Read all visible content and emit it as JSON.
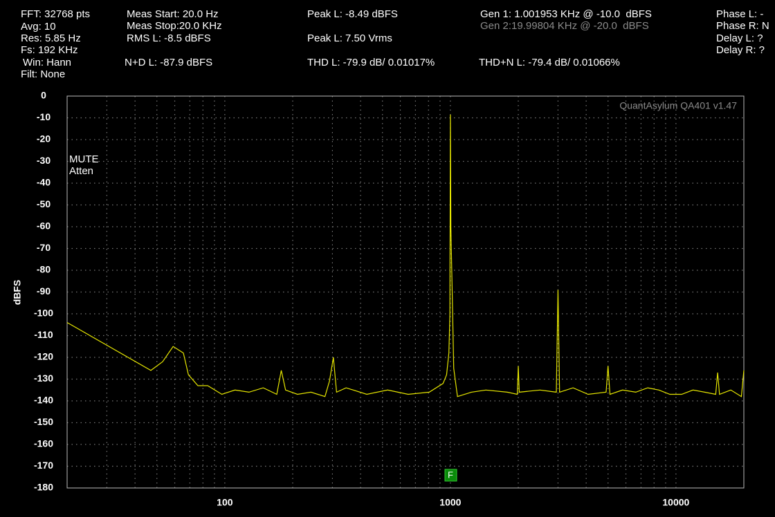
{
  "header": {
    "col1": [
      "FFT: 32768 pts",
      "Avg: 10",
      "Res: 5.85 Hz",
      "Fs: 192 KHz",
      "Win: Hann",
      "Filt: None"
    ],
    "col2": [
      "Meas Start: 20.0 Hz",
      "Meas Stop:20.0 KHz",
      "RMS L: -8.5 dBFS",
      "N+D L: -87.9 dBFS"
    ],
    "col3": [
      "Peak L: -8.49 dBFS",
      "Peak L: 7.50 Vrms",
      "THD L: -79.9 dB/ 0.01017%"
    ],
    "col4": [
      "Gen 1: 1.001953 KHz @ -10.0  dBFS",
      "Gen 2:19.99804 KHz @ -20.0  dBFS",
      "THD+N L: -79.4 dB/ 0.01066%"
    ],
    "col5": [
      "Phase L: -",
      "Phase R: N",
      "Delay L: ?",
      "Delay R: ?"
    ]
  },
  "chart_data": {
    "type": "line",
    "ylabel": "dBFS",
    "watermark": "QuantAsylum QA401 v1.47",
    "annotations": [
      "MUTE",
      "Atten"
    ],
    "marker": "F",
    "color": "#e6e600",
    "log_x": true,
    "grid": true,
    "xlim": [
      20,
      20000
    ],
    "ylim": [
      -180,
      0
    ],
    "xticks": [
      100,
      1000,
      10000
    ],
    "yticks": [
      0,
      -10,
      -20,
      -30,
      -40,
      -50,
      -60,
      -70,
      -80,
      -90,
      -100,
      -110,
      -120,
      -130,
      -140,
      -150,
      -160,
      -170,
      -180
    ],
    "x": [
      20,
      47,
      53,
      59,
      65.5,
      69,
      76,
      84,
      97,
      111,
      128,
      148,
      170,
      178,
      186,
      210,
      241,
      278,
      291,
      303,
      313,
      345,
      426,
      527,
      650,
      806,
      928,
      962,
      985,
      995,
      1000,
      1005,
      1035,
      1075,
      1240,
      1436,
      1786,
      1980,
      2000,
      2020,
      2497,
      2950,
      3000,
      3050,
      3500,
      4080,
      4900,
      5000,
      5100,
      5800,
      6636,
      7500,
      8400,
      9400,
      10600,
      11900,
      13400,
      15000,
      15300,
      15600,
      17500,
      19500,
      20000
    ],
    "values": [
      -104,
      -126,
      -122,
      -115,
      -118,
      -128,
      -133,
      -133,
      -137,
      -135,
      -136,
      -134,
      -137,
      -126,
      -135,
      -137,
      -136,
      -138,
      -131,
      -120,
      -136,
      -134,
      -137,
      -135,
      -137,
      -136,
      -132,
      -128,
      -118,
      -100,
      -8.5,
      -60,
      -125,
      -138,
      -136,
      -135,
      -136,
      -137,
      -124,
      -136,
      -135,
      -136,
      -89,
      -136,
      -134,
      -137,
      -136,
      -124,
      -137,
      -135,
      -136,
      -134,
      -135,
      -137,
      -137,
      -135,
      -136,
      -137,
      -127,
      -137,
      -135,
      -138,
      -126
    ]
  }
}
